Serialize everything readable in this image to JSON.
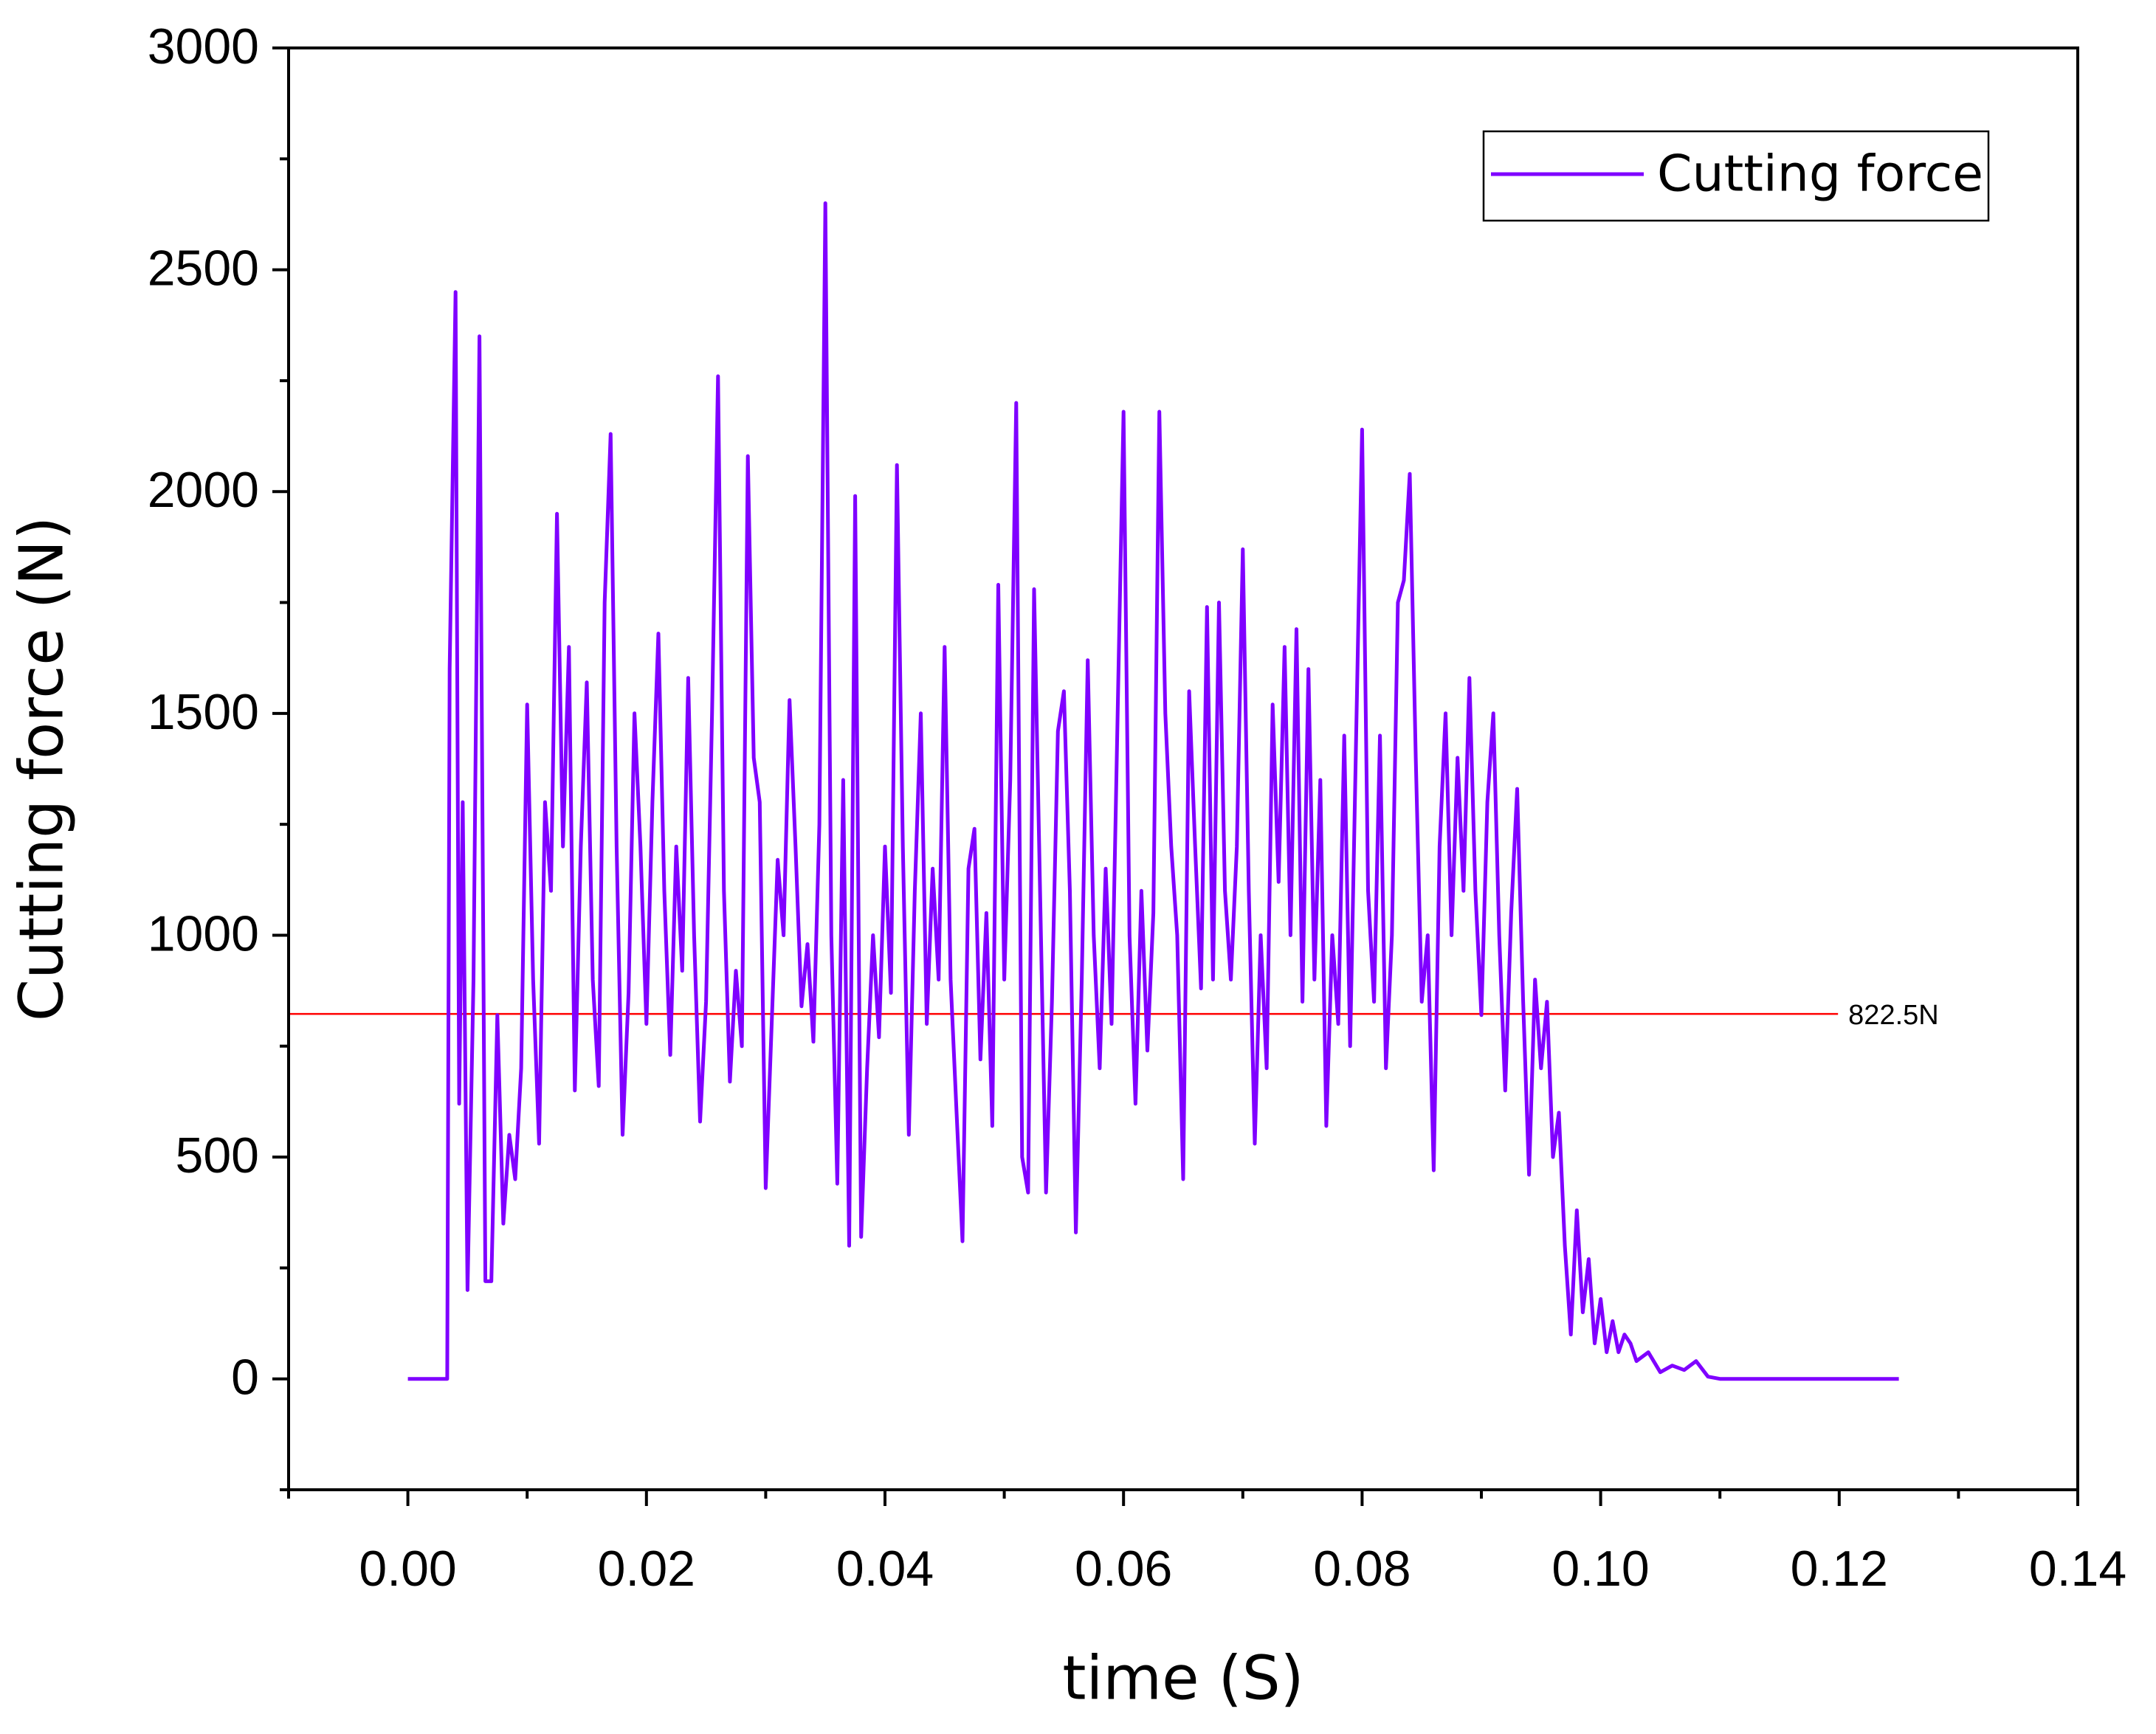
{
  "chart_data": {
    "type": "line",
    "xlabel": "time (S)",
    "ylabel": "Cutting force (N)",
    "xlim": [
      -0.01,
      0.14
    ],
    "xticks": [
      {
        "value": 0,
        "label": "0.00"
      },
      {
        "value": 0.02,
        "label": "0.02"
      },
      {
        "value": 0.04,
        "label": "0.04"
      },
      {
        "value": 0.06,
        "label": "0.06"
      },
      {
        "value": 0.08,
        "label": "0.08"
      },
      {
        "value": 0.1,
        "label": "0.10"
      },
      {
        "value": 0.12,
        "label": "0.12"
      },
      {
        "value": 0.14,
        "label": "0.14"
      }
    ],
    "xminorticks": [
      -0.01,
      0.01,
      0.03,
      0.05,
      0.07,
      0.09,
      0.11,
      0.13
    ],
    "ylim": [
      -250,
      3000
    ],
    "yticks": [
      0,
      500,
      1000,
      1500,
      2000,
      2500,
      3000
    ],
    "yminorticks": [
      -250,
      250,
      750,
      1250,
      1750,
      2250,
      2750
    ],
    "legend": "upper right",
    "hline": {
      "value": 822.5,
      "label": "822.5N",
      "color": "#ff0000"
    },
    "series": [
      {
        "name": "Cutting force",
        "color": "#7f00ff",
        "x": [
          0,
          0.0033,
          0.0035,
          0.004,
          0.0043,
          0.0046,
          0.005,
          0.0055,
          0.006,
          0.0065,
          0.007,
          0.0075,
          0.008,
          0.0085,
          0.009,
          0.0095,
          0.01,
          0.0105,
          0.011,
          0.0115,
          0.012,
          0.0125,
          0.013,
          0.0135,
          0.014,
          0.0145,
          0.015,
          0.0155,
          0.016,
          0.0165,
          0.017,
          0.0175,
          0.018,
          0.0185,
          0.019,
          0.0195,
          0.02,
          0.0205,
          0.021,
          0.0215,
          0.022,
          0.0225,
          0.023,
          0.0235,
          0.024,
          0.0245,
          0.025,
          0.0255,
          0.026,
          0.0265,
          0.027,
          0.0275,
          0.028,
          0.0285,
          0.029,
          0.0295,
          0.03,
          0.0305,
          0.031,
          0.0315,
          0.032,
          0.0325,
          0.033,
          0.0335,
          0.034,
          0.0345,
          0.035,
          0.0355,
          0.036,
          0.0365,
          0.037,
          0.0375,
          0.038,
          0.0385,
          0.039,
          0.0395,
          0.04,
          0.0405,
          0.041,
          0.0415,
          0.042,
          0.0425,
          0.043,
          0.0435,
          0.044,
          0.0445,
          0.045,
          0.0455,
          0.046,
          0.0465,
          0.047,
          0.0475,
          0.048,
          0.0485,
          0.049,
          0.0495,
          0.05,
          0.0505,
          0.051,
          0.0515,
          0.052,
          0.0525,
          0.053,
          0.0535,
          0.054,
          0.0545,
          0.055,
          0.0555,
          0.056,
          0.0565,
          0.057,
          0.0575,
          0.058,
          0.0585,
          0.059,
          0.06,
          0.0605,
          0.061,
          0.0615,
          0.062,
          0.0625,
          0.063,
          0.0635,
          0.064,
          0.0645,
          0.065,
          0.0655,
          0.066,
          0.0665,
          0.067,
          0.0675,
          0.068,
          0.0685,
          0.069,
          0.0695,
          0.07,
          0.0705,
          0.071,
          0.0715,
          0.072,
          0.0725,
          0.073,
          0.0735,
          0.074,
          0.0745,
          0.075,
          0.0755,
          0.076,
          0.0765,
          0.077,
          0.0775,
          0.078,
          0.0785,
          0.079,
          0.08,
          0.0805,
          0.081,
          0.0815,
          0.082,
          0.0825,
          0.083,
          0.0835,
          0.084,
          0.0845,
          0.085,
          0.0855,
          0.086,
          0.0865,
          0.087,
          0.0875,
          0.088,
          0.0885,
          0.089,
          0.0895,
          0.09,
          0.0905,
          0.091,
          0.0915,
          0.092,
          0.0925,
          0.093,
          0.0935,
          0.094,
          0.0945,
          0.095,
          0.0955,
          0.096,
          0.0965,
          0.097,
          0.0975,
          0.098,
          0.0985,
          0.099,
          0.0995,
          0.1,
          0.1005,
          0.101,
          0.1015,
          0.102,
          0.1025,
          0.103,
          0.104,
          0.105,
          0.106,
          0.107,
          0.108,
          0.109,
          0.11,
          0.125
        ],
        "values": [
          0,
          0,
          1600,
          2450,
          620,
          1300,
          200,
          900,
          2350,
          220,
          220,
          820,
          350,
          550,
          450,
          700,
          1520,
          900,
          530,
          1300,
          1100,
          1950,
          1200,
          1650,
          650,
          1200,
          1570,
          900,
          660,
          1750,
          2130,
          1200,
          550,
          870,
          1500,
          1200,
          800,
          1300,
          1680,
          1100,
          730,
          1200,
          920,
          1580,
          1000,
          580,
          850,
          1500,
          2260,
          1100,
          670,
          920,
          750,
          2080,
          1400,
          1300,
          430,
          800,
          1170,
          1000,
          1530,
          1200,
          840,
          980,
          760,
          1250,
          2650,
          1000,
          440,
          1350,
          300,
          1990,
          320,
          700,
          1000,
          770,
          1200,
          870,
          2060,
          1200,
          550,
          1100,
          1500,
          800,
          1150,
          900,
          1650,
          900,
          600,
          310,
          1150,
          1240,
          720,
          1050,
          570,
          1790,
          900,
          1350,
          2200,
          500,
          420,
          1780,
          1100,
          420,
          850,
          1460,
          1550,
          1100,
          330,
          900,
          1620,
          1000,
          700,
          1150,
          800,
          2180,
          1000,
          620,
          1100,
          740,
          1050,
          2180,
          1500,
          1200,
          1000,
          450,
          1550,
          1200,
          880,
          1740,
          900,
          1750,
          1100,
          900,
          1200,
          1870,
          1100,
          530,
          1000,
          700,
          1520,
          1120,
          1650,
          1000,
          1690,
          850,
          1600,
          900,
          1350,
          570,
          1000,
          800,
          1450,
          750,
          2140,
          1100,
          850,
          1450,
          700,
          1000,
          1750,
          1800,
          2040,
          1400,
          850,
          1000,
          470,
          1200,
          1500,
          1000,
          1400,
          1100,
          1580,
          1100,
          820,
          1300,
          1500,
          1000,
          650,
          1050,
          1330,
          850,
          460,
          900,
          700,
          850,
          500,
          600,
          300,
          100,
          380,
          150,
          270,
          80,
          180,
          60,
          130,
          60,
          100,
          80,
          40,
          60,
          15,
          30,
          20,
          40,
          5,
          0,
          0
        ]
      }
    ]
  }
}
